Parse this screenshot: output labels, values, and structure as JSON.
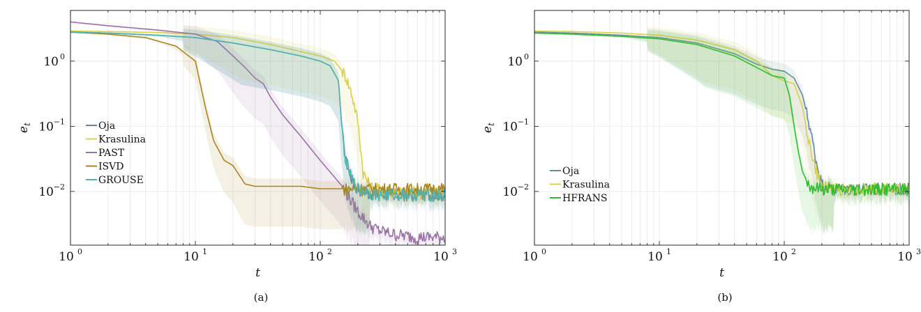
{
  "panels": [
    {
      "caption": "(a)",
      "chart_data": {
        "type": "line",
        "xscale": "log",
        "yscale": "log",
        "xlim": [
          1,
          1000
        ],
        "ylim": [
          0.0015,
          6
        ],
        "xlabel": "t",
        "ylabel": "e_t",
        "x_ticks": [
          {
            "value": 1,
            "base": "10",
            "exp": "0"
          },
          {
            "value": 10,
            "base": "10",
            "exp": "1"
          },
          {
            "value": 100,
            "base": "10",
            "exp": "2"
          },
          {
            "value": 1000,
            "base": "10",
            "exp": "3"
          }
        ],
        "y_ticks": [
          {
            "value": 0.01,
            "base": "10",
            "exp": "−2"
          },
          {
            "value": 0.1,
            "base": "10",
            "exp": "−1"
          },
          {
            "value": 1,
            "base": "10",
            "exp": "0"
          }
        ],
        "grid": true,
        "legend_position": "bottom-left",
        "series": [
          {
            "name": "Oja",
            "color": "#66899c",
            "x": [
              1,
              2,
              5,
              10,
              20,
              40,
              70,
              100,
              120,
              140,
              150,
              160,
              180,
              200,
              250,
              300,
              400,
              600,
              1000
            ],
            "y": [
              2.8,
              2.7,
              2.5,
              2.3,
              1.9,
              1.5,
              1.2,
              1.0,
              0.85,
              0.5,
              0.08,
              0.03,
              0.015,
              0.011,
              0.0095,
              0.009,
              0.009,
              0.009,
              0.009
            ],
            "band": [
              [
                1.3,
                0.8
              ],
              [
                1.2,
                0.5
              ],
              [
                1.0,
                0.3
              ],
              [
                1.0,
                0.15
              ],
              [
                1.0,
                0.1
              ]
            ]
          },
          {
            "name": "Krasulina",
            "color": "#d8d14e",
            "x": [
              1,
              2,
              5,
              10,
              20,
              40,
              70,
              100,
              130,
              160,
              180,
              200,
              210,
              220,
              250,
              300,
              400,
              600,
              1000
            ],
            "y": [
              2.9,
              2.85,
              2.75,
              2.6,
              2.3,
              1.8,
              1.4,
              1.2,
              1.0,
              0.6,
              0.3,
              0.12,
              0.05,
              0.02,
              0.012,
              0.011,
              0.01,
              0.01,
              0.01
            ],
            "band": [
              [
                1.2,
                0.8
              ],
              [
                1.2,
                0.6
              ],
              [
                1.0,
                0.3
              ],
              [
                1.0,
                0.2
              ],
              [
                1.0,
                0.15
              ]
            ]
          },
          {
            "name": "PAST",
            "color": "#9b72a6",
            "x": [
              1,
              2,
              5,
              10,
              15,
              20,
              25,
              30,
              35,
              40,
              50,
              70,
              100,
              150,
              200,
              250,
              300,
              400,
              600,
              1000
            ],
            "y": [
              4.0,
              3.5,
              3.0,
              2.6,
              2.0,
              1.2,
              0.8,
              0.55,
              0.45,
              0.28,
              0.15,
              0.07,
              0.03,
              0.012,
              0.005,
              0.003,
              0.0025,
              0.0022,
              0.002,
              0.002
            ],
            "band": [
              [
                1.3,
                0.7
              ],
              [
                1.2,
                0.7
              ],
              [
                1.1,
                0.8
              ],
              [
                1.0,
                0.7
              ]
            ]
          },
          {
            "name": "ISVD",
            "color": "#a98520",
            "x": [
              1,
              2,
              4,
              7,
              10,
              12,
              14,
              17,
              20,
              25,
              30,
              50,
              70,
              100,
              150,
              200,
              300,
              500,
              1000
            ],
            "y": [
              2.8,
              2.6,
              2.3,
              1.7,
              1.0,
              0.2,
              0.06,
              0.03,
              0.025,
              0.013,
              0.012,
              0.012,
              0.012,
              0.011,
              0.011,
              0.011,
              0.011,
              0.011,
              0.011
            ],
            "band": [
              [
                1.0,
                0.1
              ],
              [
                1.0,
                0.3
              ],
              [
                1.0,
                0.6
              ],
              [
                1.0,
                0.9
              ]
            ]
          },
          {
            "name": "GROUSE",
            "color": "#4fb4ad",
            "x": [
              1,
              2,
              5,
              10,
              20,
              40,
              70,
              100,
              120,
              140,
              150,
              160,
              180,
              200,
              250,
              300,
              400,
              600,
              1000
            ],
            "y": [
              2.8,
              2.7,
              2.5,
              2.3,
              1.9,
              1.5,
              1.2,
              1.0,
              0.85,
              0.5,
              0.08,
              0.03,
              0.015,
              0.011,
              0.0095,
              0.009,
              0.009,
              0.009,
              0.009
            ],
            "band": [
              [
                1.3,
                0.8
              ],
              [
                1.2,
                0.5
              ],
              [
                1.0,
                0.2
              ],
              [
                1.0,
                0.1
              ],
              [
                1.0,
                0.1
              ]
            ]
          }
        ]
      }
    },
    {
      "caption": "(b)",
      "chart_data": {
        "type": "line",
        "xscale": "log",
        "yscale": "log",
        "xlim": [
          1,
          1000
        ],
        "ylim": [
          0.0015,
          6
        ],
        "xlabel": "t",
        "ylabel": "e_t",
        "x_ticks": [
          {
            "value": 1,
            "base": "10",
            "exp": "0"
          },
          {
            "value": 10,
            "base": "10",
            "exp": "1"
          },
          {
            "value": 100,
            "base": "10",
            "exp": "2"
          },
          {
            "value": 1000,
            "base": "10",
            "exp": "3"
          }
        ],
        "y_ticks": [
          {
            "value": 0.01,
            "base": "10",
            "exp": "−2"
          },
          {
            "value": 0.1,
            "base": "10",
            "exp": "−1"
          },
          {
            "value": 1,
            "base": "10",
            "exp": "0"
          }
        ],
        "grid": true,
        "legend_position": "bottom-left",
        "series": [
          {
            "name": "Oja",
            "color": "#66899c",
            "x": [
              1,
              2,
              5,
              10,
              20,
              40,
              60,
              80,
              100,
              120,
              140,
              160,
              180,
              200,
              250,
              300,
              500,
              1000
            ],
            "y": [
              2.8,
              2.7,
              2.5,
              2.3,
              1.9,
              1.3,
              0.9,
              0.75,
              0.7,
              0.55,
              0.3,
              0.1,
              0.03,
              0.013,
              0.011,
              0.011,
              0.011,
              0.011
            ],
            "band": [
              [
                1.0,
                0.2
              ],
              [
                1.0,
                0.15
              ],
              [
                1.0,
                0.1
              ]
            ]
          },
          {
            "name": "Krasulina",
            "color": "#d8d14e",
            "x": [
              1,
              2,
              5,
              10,
              20,
              40,
              60,
              80,
              100,
              120,
              140,
              160,
              180,
              200,
              250,
              300,
              500,
              1000
            ],
            "y": [
              2.9,
              2.85,
              2.7,
              2.5,
              2.1,
              1.5,
              1.0,
              0.6,
              0.5,
              0.45,
              0.2,
              0.05,
              0.02,
              0.012,
              0.011,
              0.011,
              0.011,
              0.011
            ],
            "band": [
              [
                1.3,
                0.2
              ],
              [
                1.0,
                0.15
              ],
              [
                1.0,
                0.1
              ]
            ]
          },
          {
            "name": "HFRANS",
            "color": "#2ebd2e",
            "x": [
              1,
              2,
              5,
              10,
              20,
              40,
              60,
              80,
              100,
              110,
              120,
              130,
              140,
              160,
              200,
              300,
              500,
              1000
            ],
            "y": [
              2.7,
              2.6,
              2.4,
              2.2,
              1.8,
              1.2,
              0.8,
              0.6,
              0.55,
              0.3,
              0.1,
              0.04,
              0.02,
              0.012,
              0.011,
              0.011,
              0.011,
              0.011
            ],
            "band": [
              [
                1.0,
                0.1
              ],
              [
                1.0,
                0.08
              ],
              [
                1.0,
                0.05
              ]
            ]
          }
        ]
      }
    }
  ]
}
